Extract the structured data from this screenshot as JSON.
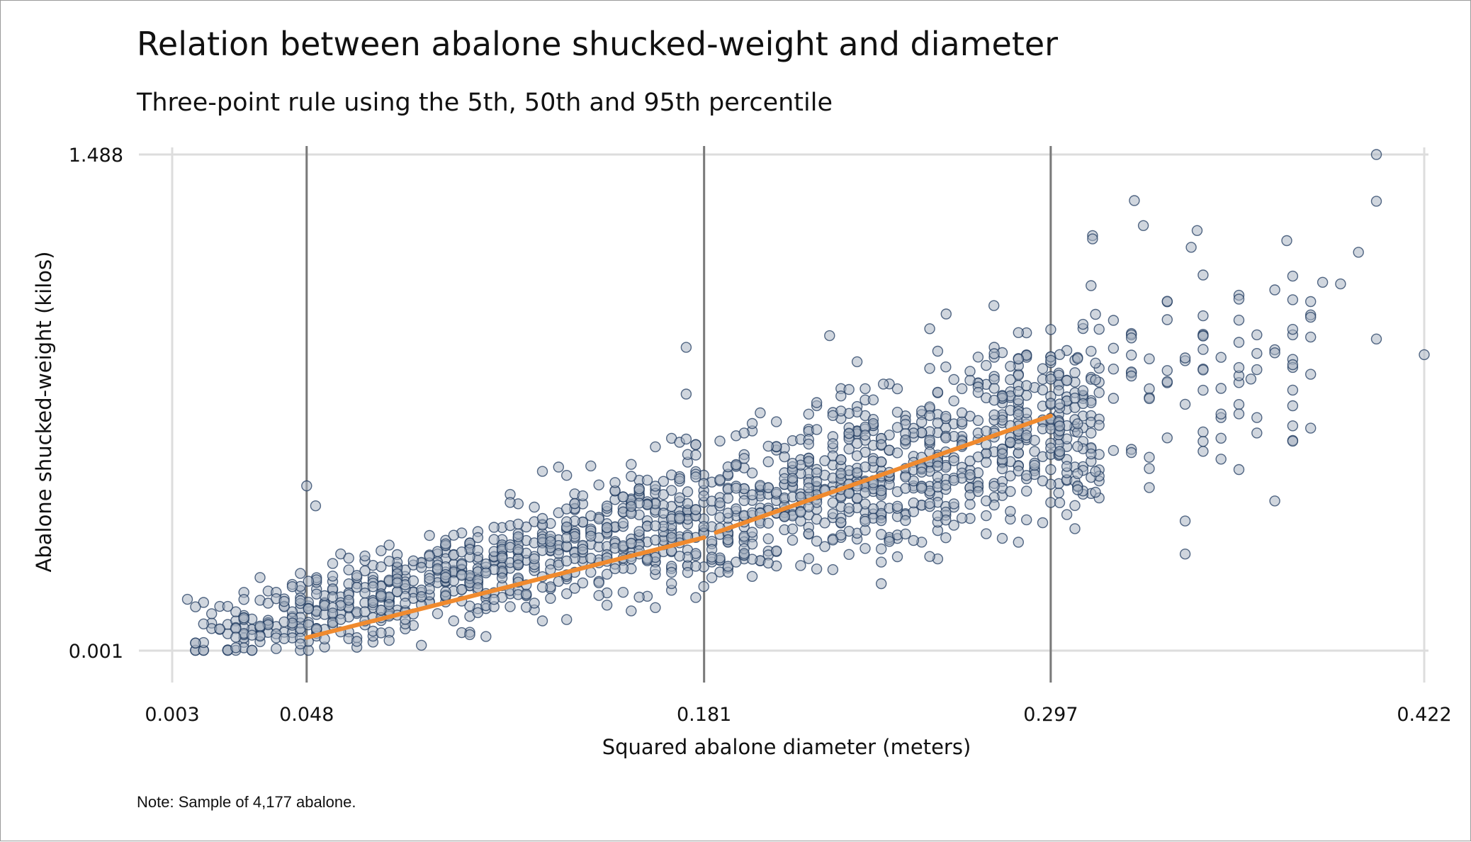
{
  "chart_data": {
    "type": "scatter",
    "title": "Relation between abalone shucked-weight and diameter",
    "subtitle": "Three-point rule using the 5th, 50th and 95th percentile",
    "xlabel": "Squared abalone diameter (meters)",
    "ylabel": "Abalone shucked-weight (kilos)",
    "note": "Note: Sample of 4,177 abalone.",
    "xlim": [
      0.003,
      0.422
    ],
    "ylim": [
      0.001,
      1.488
    ],
    "x_ticks": [
      "0.003",
      "0.048",
      "0.181",
      "0.297",
      "0.422"
    ],
    "y_ticks": [
      "0.001",
      "1.488"
    ],
    "grid": true,
    "percentile_lines": [
      0.048,
      0.181,
      0.297
    ],
    "colors": {
      "points_fill": "#a9b4c2",
      "points_stroke": "#1f3a5f",
      "fit_line": "#f08a2e",
      "percentile_line": "#7a7a7a",
      "grid": "#dddddd"
    },
    "fit_segments": [
      {
        "x": [
          0.048,
          0.181
        ],
        "y": [
          0.04,
          0.34
        ]
      },
      {
        "x": [
          0.185,
          0.297
        ],
        "y": [
          0.355,
          0.705
        ]
      }
    ],
    "outliers": [
      {
        "x": 0.048,
        "y": 0.495
      },
      {
        "x": 0.051,
        "y": 0.435
      },
      {
        "x": 0.175,
        "y": 0.91
      },
      {
        "x": 0.175,
        "y": 0.77
      },
      {
        "x": 0.175,
        "y": 0.635
      },
      {
        "x": 0.223,
        "y": 0.945
      },
      {
        "x": 0.241,
        "y": 0.8
      },
      {
        "x": 0.262,
        "y": 1.01
      },
      {
        "x": 0.278,
        "y": 1.035
      },
      {
        "x": 0.406,
        "y": 1.488
      },
      {
        "x": 0.406,
        "y": 1.348
      },
      {
        "x": 0.406,
        "y": 0.935
      },
      {
        "x": 0.422,
        "y": 0.888
      },
      {
        "x": 0.4,
        "y": 1.195
      },
      {
        "x": 0.394,
        "y": 1.1
      },
      {
        "x": 0.388,
        "y": 1.105
      },
      {
        "x": 0.376,
        "y": 1.23
      },
      {
        "x": 0.346,
        "y": 1.26
      },
      {
        "x": 0.364,
        "y": 0.815
      },
      {
        "x": 0.325,
        "y": 1.35
      },
      {
        "x": 0.311,
        "y": 1.245
      },
      {
        "x": 0.311,
        "y": 1.235
      },
      {
        "x": 0.328,
        "y": 1.275
      },
      {
        "x": 0.344,
        "y": 1.21
      }
    ]
  }
}
